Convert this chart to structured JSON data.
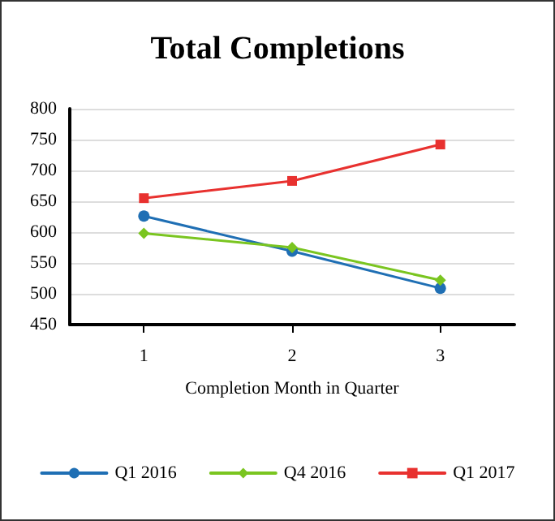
{
  "chart_data": {
    "type": "line",
    "title": "Total Completions",
    "xlabel": "Completion Month in Quarter",
    "categories": [
      "1",
      "2",
      "3"
    ],
    "series": [
      {
        "name": "Q1 2016",
        "color": "#1f6fb4",
        "marker": "circle",
        "values": [
          626,
          569,
          509
        ]
      },
      {
        "name": "Q4 2016",
        "color": "#7ac520",
        "marker": "diamond",
        "values": [
          598,
          575,
          522
        ]
      },
      {
        "name": "Q1 2017",
        "color": "#e8312f",
        "marker": "square",
        "values": [
          655,
          683,
          742
        ]
      }
    ],
    "ylim": [
      450,
      800
    ],
    "yticks": [
      450,
      500,
      550,
      600,
      650,
      700,
      750,
      800
    ],
    "grid": "y",
    "legend": "bottom",
    "line_style": "solid"
  }
}
